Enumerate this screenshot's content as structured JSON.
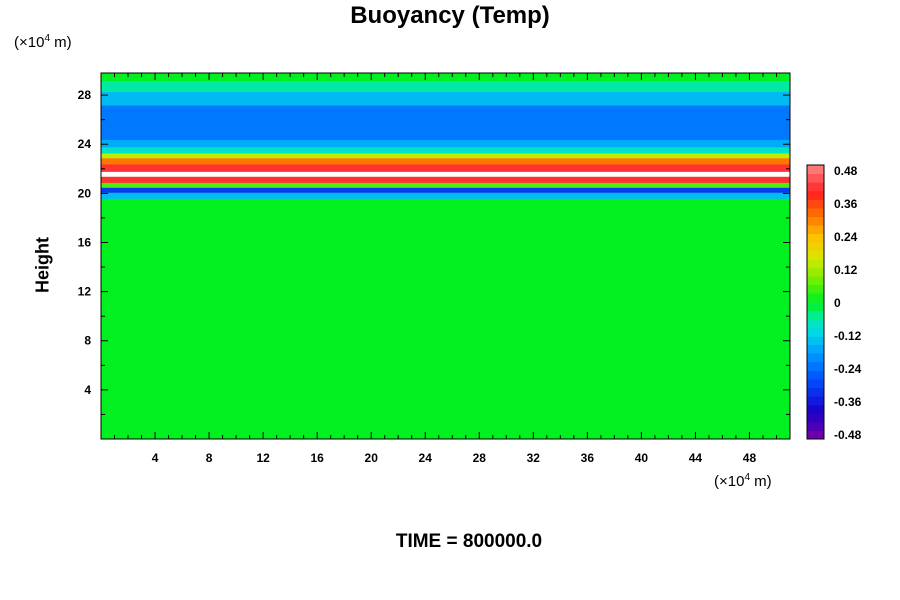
{
  "chart_data": {
    "type": "heatmap",
    "title": "Buoyancy (Temp)",
    "ylabel": "Height",
    "xunit": "(×10⁴ m)",
    "yunit": "(×10⁴ m)",
    "xlim": [
      0,
      51
    ],
    "ylim": [
      0,
      29.8
    ],
    "xticks": [
      4,
      8,
      12,
      16,
      20,
      24,
      28,
      32,
      36,
      40,
      44,
      48
    ],
    "yticks": [
      4,
      8,
      12,
      16,
      20,
      24,
      28
    ],
    "colorbar": {
      "min": -0.48,
      "max": 0.48,
      "ticks": [
        "0.48",
        "0.36",
        "0.24",
        "0.12",
        "0",
        "-0.12",
        "-0.24",
        "-0.36",
        "-0.48"
      ]
    },
    "bands": [
      {
        "y0": 0.0,
        "y1": 19.6,
        "value": 0.0
      },
      {
        "y0": 19.6,
        "y1": 20.1,
        "value": -0.14
      },
      {
        "y0": 20.1,
        "y1": 20.5,
        "value": -0.3
      },
      {
        "y0": 20.5,
        "y1": 20.9,
        "value": 0.05
      },
      {
        "y0": 20.9,
        "y1": 21.4,
        "value": 0.4
      },
      {
        "y0": 21.4,
        "y1": 21.8,
        "value": 0.48
      },
      {
        "y0": 21.8,
        "y1": 22.4,
        "value": 0.4
      },
      {
        "y0": 22.4,
        "y1": 22.9,
        "value": 0.3
      },
      {
        "y0": 22.9,
        "y1": 23.3,
        "value": 0.14
      },
      {
        "y0": 23.3,
        "y1": 23.8,
        "value": -0.08
      },
      {
        "y0": 23.8,
        "y1": 24.4,
        "value": -0.16
      },
      {
        "y0": 24.4,
        "y1": 27.2,
        "value": -0.22
      },
      {
        "y0": 27.2,
        "y1": 28.3,
        "value": -0.14
      },
      {
        "y0": 28.3,
        "y1": 29.2,
        "value": -0.06
      },
      {
        "y0": 29.2,
        "y1": 29.8,
        "value": 0.0
      }
    ]
  },
  "time_label": "TIME = 800000.0"
}
